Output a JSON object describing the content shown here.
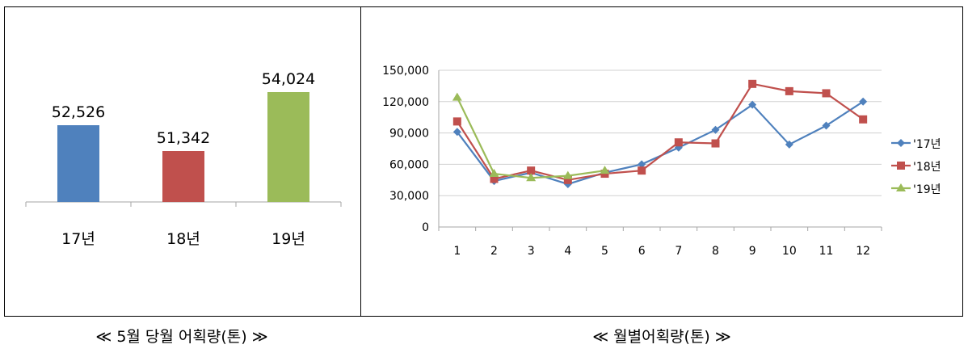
{
  "colors": {
    "s17": "#4f81bd",
    "s18": "#c0504d",
    "s19": "#9bbb59",
    "grid": "#d0d0d0",
    "axis": "#a6a6a6"
  },
  "captions": {
    "left": "≪ 5월 당월 어획량(톤) ≫",
    "right": "≪ 월별어획량(톤) ≫"
  },
  "chart_data": [
    {
      "type": "bar",
      "title": "5월 당월 어획량(톤)",
      "categories": [
        "17년",
        "18년",
        "19년"
      ],
      "values": [
        52526,
        51342,
        54024
      ],
      "value_labels": [
        "52,526",
        "51,342",
        "54,024"
      ],
      "colors": [
        "#4f81bd",
        "#c0504d",
        "#9bbb59"
      ],
      "xlabel": "",
      "ylabel": "",
      "ylim": [
        49000,
        55000
      ]
    },
    {
      "type": "line",
      "title": "월별어획량(톤)",
      "x": [
        1,
        2,
        3,
        4,
        5,
        6,
        7,
        8,
        9,
        10,
        11,
        12
      ],
      "yticks": [
        "0",
        "30,000",
        "60,000",
        "90,000",
        "120,000",
        "150,000"
      ],
      "ylim": [
        0,
        150000
      ],
      "legend_position": "right",
      "series": [
        {
          "name": "'17년",
          "marker": "diamond",
          "color": "#4f81bd",
          "values": [
            91000,
            44000,
            52000,
            41000,
            52000,
            60000,
            76000,
            93000,
            117000,
            79000,
            97000,
            120000
          ]
        },
        {
          "name": "'18년",
          "marker": "square",
          "color": "#c0504d",
          "values": [
            101000,
            46000,
            54000,
            45000,
            51000,
            54000,
            81000,
            80000,
            137000,
            130000,
            128000,
            103000
          ]
        },
        {
          "name": "'19년",
          "marker": "triangle",
          "color": "#9bbb59",
          "values": [
            124000,
            51000,
            47000,
            49000,
            54000
          ]
        }
      ]
    }
  ]
}
